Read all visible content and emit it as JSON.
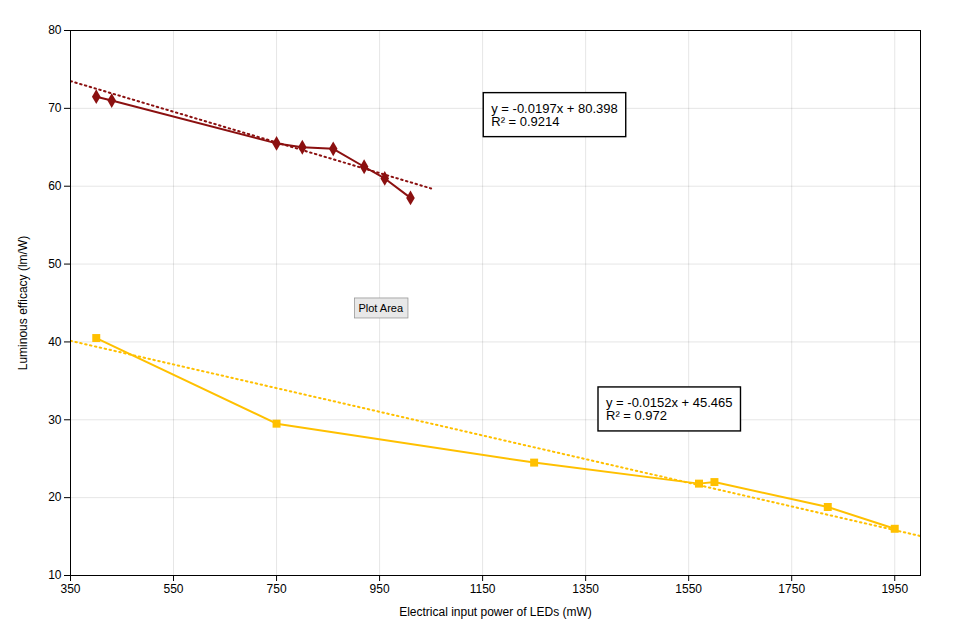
{
  "chart_data": {
    "type": "line",
    "xlabel": "Electrical input power of LEDs (mW)",
    "ylabel": "Luminous efficacy (lm/W)",
    "series": [
      {
        "color": "#8B1010",
        "line_style": "dotted",
        "x": [
          350,
          1050
        ],
        "values": [
          73.503,
          59.713
        ]
      },
      {
        "color": "#FFC000",
        "line_style": "dotted",
        "x": [
          350,
          2000
        ],
        "values": [
          40.145,
          15.065
        ]
      },
      {
        "color": "#8B1010",
        "line_style": "solid",
        "marker": "diamond",
        "x": [
          400,
          430,
          750,
          800,
          860,
          920,
          960,
          1010
        ],
        "values": [
          71.5,
          71.0,
          65.5,
          65.0,
          64.8,
          62.5,
          61.0,
          58.5
        ]
      },
      {
        "color": "#FFC000",
        "line_style": "solid",
        "marker": "square",
        "x": [
          400,
          750,
          1250,
          1570,
          1600,
          1820,
          1950
        ],
        "values": [
          40.5,
          29.5,
          24.5,
          21.8,
          22.0,
          18.8,
          16.0
        ]
      }
    ],
    "annotations": [
      "y = -0.0197x + 80.398\nR² = 0.9214",
      "y = -0.0152x + 45.465\nR² = 0.972",
      "Plot Area"
    ],
    "xlim": [
      350,
      2000
    ],
    "ylim": [
      10,
      80
    ],
    "xticks": [
      350,
      550,
      750,
      950,
      1150,
      1350,
      1550,
      1750,
      1950
    ],
    "yticks": [
      10,
      20,
      30,
      40,
      50,
      60,
      70,
      80
    ],
    "grid": true
  }
}
